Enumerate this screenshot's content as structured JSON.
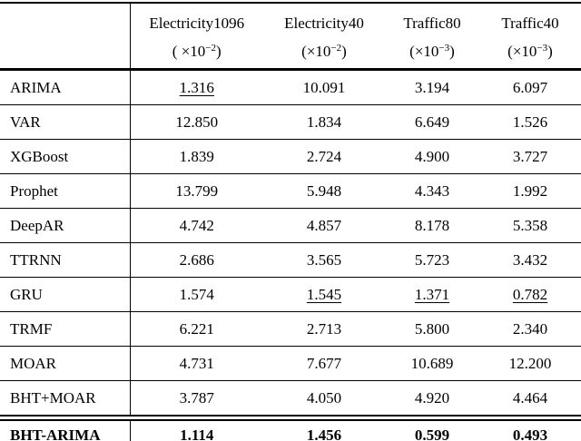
{
  "page": {
    "background": "#ffffff",
    "text_color": "#000000",
    "rule_color": "#000000"
  },
  "table": {
    "corner_label": "",
    "columns": [
      {
        "name": "Electricity1096",
        "scale_prefix": "( ",
        "scale_base": "×10",
        "exponent": "−2",
        "scale_suffix": ")"
      },
      {
        "name": "Electricity40",
        "scale_prefix": "(",
        "scale_base": "×10",
        "exponent": "−2",
        "scale_suffix": ")"
      },
      {
        "name": "Traffic80",
        "scale_prefix": "(",
        "scale_base": "×10",
        "exponent": "−3",
        "scale_suffix": ")"
      },
      {
        "name": "Traffic40",
        "scale_prefix": "(",
        "scale_base": "×10",
        "exponent": "−3",
        "scale_suffix": ")"
      }
    ],
    "rows": [
      {
        "label": "ARIMA",
        "values": [
          "1.316",
          "10.091",
          "3.194",
          "6.097"
        ],
        "underline_cols": [
          0
        ],
        "bold": false
      },
      {
        "label": "VAR",
        "values": [
          "12.850",
          "1.834",
          "6.649",
          "1.526"
        ],
        "underline_cols": [],
        "bold": false
      },
      {
        "label": "XGBoost",
        "values": [
          "1.839",
          "2.724",
          "4.900",
          "3.727"
        ],
        "underline_cols": [],
        "bold": false
      },
      {
        "label": "Prophet",
        "values": [
          "13.799",
          "5.948",
          "4.343",
          "1.992"
        ],
        "underline_cols": [],
        "bold": false
      },
      {
        "label": "DeepAR",
        "values": [
          "4.742",
          "4.857",
          "8.178",
          "5.358"
        ],
        "underline_cols": [],
        "bold": false
      },
      {
        "label": "TTRNN",
        "values": [
          "2.686",
          "3.565",
          "5.723",
          "3.432"
        ],
        "underline_cols": [],
        "bold": false
      },
      {
        "label": "GRU",
        "values": [
          "1.574",
          "1.545",
          "1.371",
          "0.782"
        ],
        "underline_cols": [
          1,
          2,
          3
        ],
        "bold": false
      },
      {
        "label": "TRMF",
        "values": [
          "6.221",
          "2.713",
          "5.800",
          "2.340"
        ],
        "underline_cols": [],
        "bold": false
      },
      {
        "label": "MOAR",
        "values": [
          "4.731",
          "7.677",
          "10.689",
          "12.200"
        ],
        "underline_cols": [],
        "bold": false
      },
      {
        "label": "BHT+MOAR",
        "values": [
          "3.787",
          "4.050",
          "4.920",
          "4.464"
        ],
        "underline_cols": [],
        "bold": false
      },
      {
        "label": "BHT-ARIMA",
        "values": [
          "1.114",
          "1.456",
          "0.599",
          "0.493"
        ],
        "underline_cols": [],
        "bold": true
      }
    ]
  }
}
